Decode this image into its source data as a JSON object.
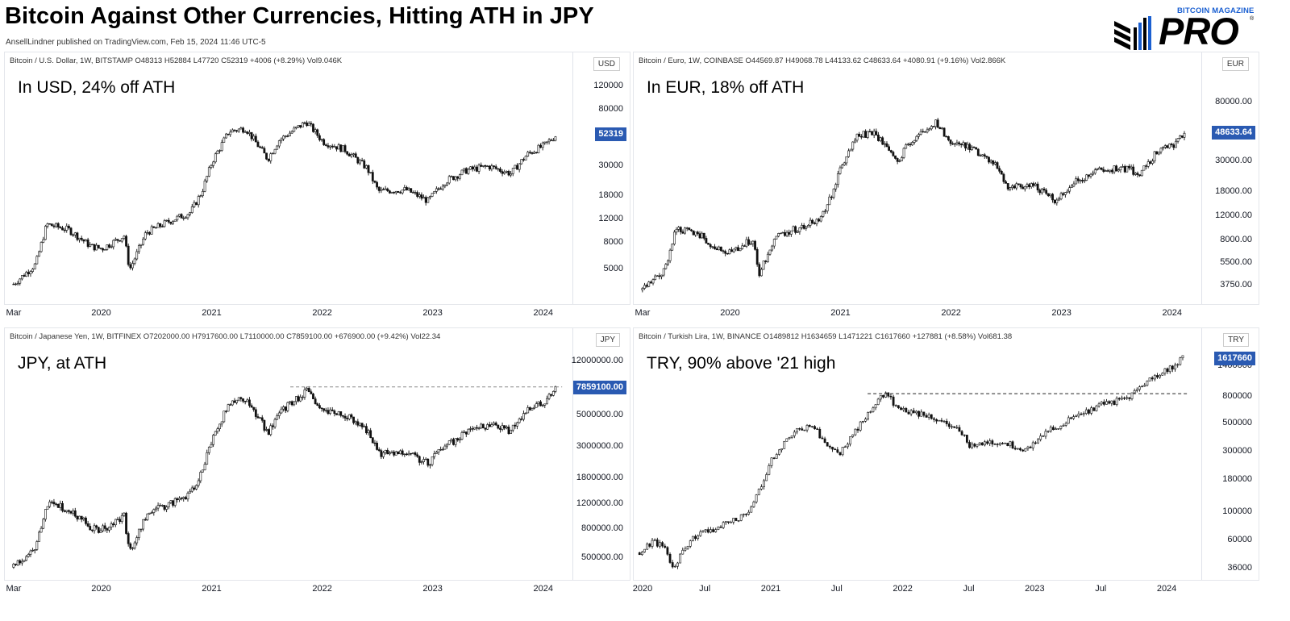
{
  "header": {
    "title": "Bitcoin Against Other Currencies, Hitting ATH in JPY",
    "byline": "AnsellLindner published on TradingView.com, Feb 15, 2024 11:46 UTC-5",
    "logo_line": "BITCOIN MAGAZINE",
    "logo_word": "PRO",
    "logo_mark": "®"
  },
  "chart_data": [
    {
      "type": "candlestick",
      "legend": "Bitcoin / U.S. Dollar, 1W, BITSTAMP  O48313  H52884  L47720  C52319  +4006 (+8.29%)  Vol9.046K",
      "annotation": "In USD, 24% off ATH",
      "currency": "USD",
      "last_price": "52319",
      "scale": "log",
      "ylim": [
        3000,
        150000
      ],
      "y_ticks": [
        "120000",
        "80000",
        "30000",
        "18000",
        "12000",
        "8000",
        "5000"
      ],
      "x_ticks": [
        "Mar",
        "2020",
        "2021",
        "2022",
        "2023",
        "2024"
      ],
      "x": [
        2019.2,
        2019.4,
        2019.5,
        2019.7,
        2019.9,
        2020.0,
        2020.2,
        2020.25,
        2020.4,
        2020.6,
        2020.8,
        2020.9,
        2021.0,
        2021.15,
        2021.3,
        2021.5,
        2021.6,
        2021.85,
        2022.0,
        2022.2,
        2022.4,
        2022.5,
        2022.75,
        2022.95,
        2023.1,
        2023.3,
        2023.5,
        2023.7,
        2023.85,
        2024.0,
        2024.12
      ],
      "y": [
        3900,
        5500,
        11000,
        10000,
        7500,
        7200,
        9000,
        5000,
        9500,
        11500,
        13500,
        19000,
        33000,
        55000,
        58000,
        34000,
        47000,
        65000,
        46000,
        40000,
        29000,
        19500,
        20000,
        16500,
        23000,
        28000,
        30000,
        26500,
        37000,
        43000,
        52319
      ],
      "ath_line": null
    },
    {
      "type": "candlestick",
      "legend": "Bitcoin / Euro, 1W, COINBASE  O44569.87  H49068.78  L44133.62  C48633.64  +4080.91 (+9.16%)  Vol2.866K",
      "annotation": "In EUR, 18% off ATH",
      "currency": "EUR",
      "last_price": "48633.64",
      "scale": "log",
      "ylim": [
        3000,
        130000
      ],
      "y_ticks": [
        "80000.00",
        "30000.00",
        "18000.00",
        "12000.00",
        "8000.00",
        "5500.00",
        "3750.00"
      ],
      "x_ticks": [
        "Mar",
        "2020",
        "2021",
        "2022",
        "2023",
        "2024"
      ],
      "x": [
        2019.2,
        2019.4,
        2019.5,
        2019.7,
        2019.9,
        2020.0,
        2020.2,
        2020.25,
        2020.4,
        2020.6,
        2020.8,
        2020.9,
        2021.0,
        2021.15,
        2021.3,
        2021.5,
        2021.6,
        2021.85,
        2022.0,
        2022.2,
        2022.4,
        2022.5,
        2022.75,
        2022.95,
        2023.1,
        2023.3,
        2023.5,
        2023.7,
        2023.85,
        2024.0,
        2024.12
      ],
      "y": [
        3500,
        4800,
        9800,
        9000,
        6800,
        6500,
        8200,
        4500,
        8500,
        9800,
        11500,
        16000,
        28000,
        46000,
        49000,
        29000,
        40000,
        57000,
        41000,
        37000,
        27500,
        19500,
        20000,
        15500,
        21000,
        25500,
        27000,
        25000,
        34500,
        39500,
        48633.64
      ],
      "ath_line": null
    },
    {
      "type": "candlestick",
      "legend": "Bitcoin / Japanese Yen, 1W, BITFINEX  O7202000.00  H7917600.00  L7110000.00  C7859100.00  +676900.00 (+9.42%)  Vol22.34",
      "annotation": "JPY, at ATH",
      "currency": "JPY",
      "last_price": "7859100.00",
      "scale": "log",
      "ylim": [
        380000,
        14500000
      ],
      "y_ticks": [
        "12000000.00",
        "5000000.00",
        "3000000.00",
        "1800000.00",
        "1200000.00",
        "800000.00",
        "500000.00"
      ],
      "x_ticks": [
        "Mar",
        "2020",
        "2021",
        "2022",
        "2023",
        "2024"
      ],
      "x": [
        2019.2,
        2019.4,
        2019.5,
        2019.7,
        2019.9,
        2020.0,
        2020.2,
        2020.25,
        2020.4,
        2020.6,
        2020.8,
        2020.9,
        2021.0,
        2021.15,
        2021.3,
        2021.5,
        2021.6,
        2021.85,
        2022.0,
        2022.2,
        2022.4,
        2022.5,
        2022.75,
        2022.95,
        2023.1,
        2023.3,
        2023.5,
        2023.7,
        2023.85,
        2024.0,
        2024.12
      ],
      "y": [
        430000,
        600000,
        1200000,
        1100000,
        820000,
        790000,
        980000,
        550000,
        1000000,
        1200000,
        1400000,
        2000000,
        3500000,
        6000000,
        6500000,
        3800000,
        5200000,
        7400000,
        5300000,
        5000000,
        3900000,
        2700000,
        2800000,
        2300000,
        3000000,
        3800000,
        4300000,
        3900000,
        5400000,
        6200000,
        7859100
      ],
      "ath_line": 7900000
    },
    {
      "type": "candlestick",
      "legend": "Bitcoin / Turkish Lira, 1W, BINANCE  O1489812  H1634659  L1471221  C1617660  +127881 (+8.58%)  Vol681.38",
      "annotation": "TRY, 90% above '21 high",
      "currency": "TRY",
      "last_price": "1617660",
      "scale": "log",
      "ylim": [
        32000,
        1900000
      ],
      "y_ticks": [
        "1400000",
        "800000",
        "500000",
        "300000",
        "180000",
        "100000",
        "60000",
        "36000"
      ],
      "x_ticks": [
        "2020",
        "Jul",
        "2021",
        "Jul",
        "2022",
        "Jul",
        "2023",
        "Jul",
        "2024"
      ],
      "x": [
        2020.0,
        2020.1,
        2020.2,
        2020.25,
        2020.4,
        2020.6,
        2020.8,
        2020.9,
        2021.0,
        2021.15,
        2021.3,
        2021.5,
        2021.6,
        2021.85,
        2022.0,
        2022.2,
        2022.4,
        2022.5,
        2022.75,
        2022.95,
        2023.1,
        2023.3,
        2023.5,
        2023.7,
        2023.85,
        2024.0,
        2024.12
      ],
      "y": [
        48000,
        60000,
        52000,
        36000,
        62000,
        78000,
        95000,
        140000,
        260000,
        420000,
        480000,
        280000,
        390000,
        850000,
        620000,
        580000,
        470000,
        340000,
        350000,
        310000,
        430000,
        560000,
        700000,
        780000,
        1050000,
        1300000,
        1617660
      ],
      "ath_line": 850000
    }
  ]
}
